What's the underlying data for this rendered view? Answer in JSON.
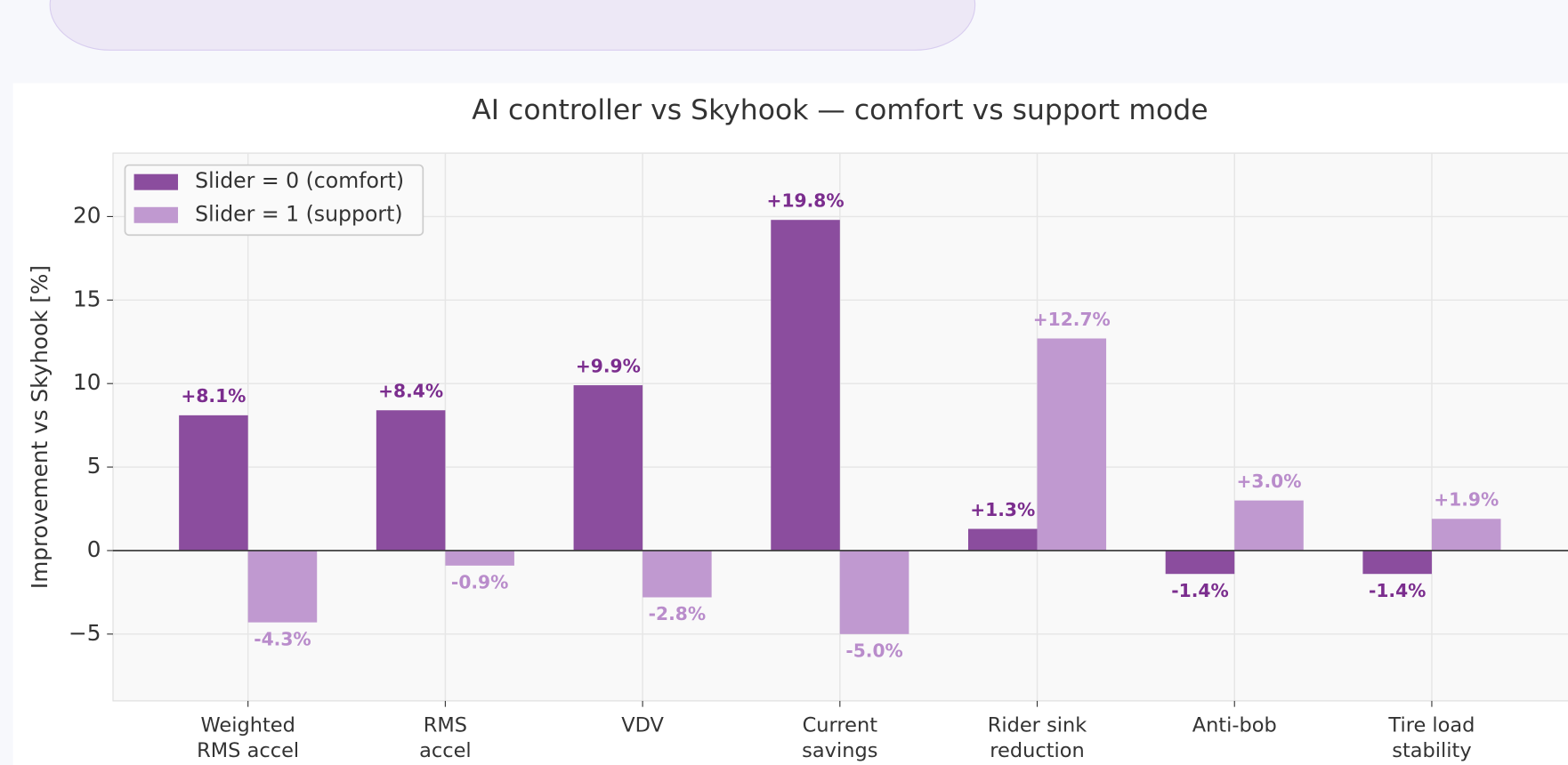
{
  "chart_data": {
    "type": "bar",
    "title": "AI controller vs Skyhook — comfort vs support mode",
    "y_label": "Improvement vs Skyhook [%]",
    "categories": [
      "Weighted\nRMS accel",
      "RMS\naccel",
      "VDV",
      "Current\nsavings",
      "Rider sink\nreduction",
      "Anti-bob",
      "Tire load\nstability"
    ],
    "series": [
      {
        "name": "Slider = 0 (comfort)",
        "color": "#8b4d9e",
        "label_color": "#7b2d8e",
        "values": [
          8.1,
          8.4,
          9.9,
          19.8,
          1.3,
          -1.4,
          -1.4
        ],
        "value_labels": [
          "+8.1%",
          "+8.4%",
          "+9.9%",
          "+19.8%",
          "+1.3%",
          "-1.4%",
          "-1.4%"
        ]
      },
      {
        "name": "Slider = 1 (support)",
        "color": "#c099d0",
        "label_color": "#b98ccb",
        "values": [
          -4.3,
          -0.9,
          -2.8,
          -5.0,
          12.7,
          3.0,
          1.9
        ],
        "value_labels": [
          "-4.3%",
          "-0.9%",
          "-2.8%",
          "-5.0%",
          "+12.7%",
          "+3.0%",
          "+1.9%"
        ]
      }
    ],
    "ylim": [
      -9,
      23.8
    ],
    "yticks": [
      {
        "value": -5,
        "label": "−5"
      },
      0,
      5,
      10,
      15,
      20
    ],
    "grid": true,
    "legend": "upper left"
  }
}
